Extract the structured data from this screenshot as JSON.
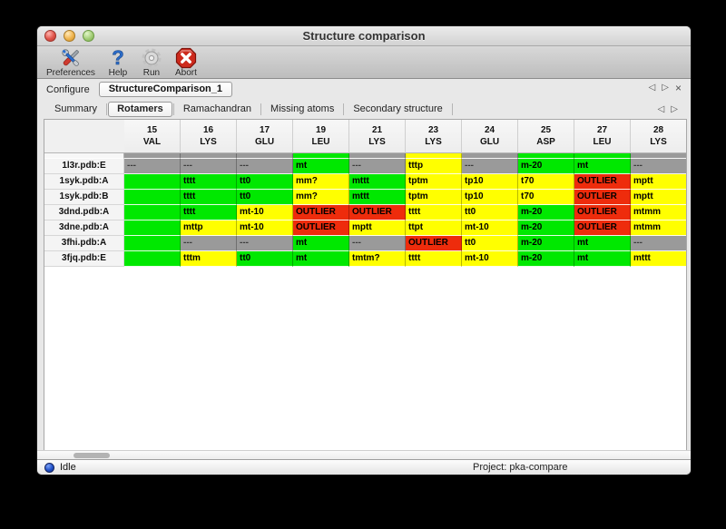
{
  "window": {
    "title": "Structure comparison"
  },
  "toolbar": {
    "items": [
      {
        "label": "Preferences",
        "icon": "preferences-tools-icon"
      },
      {
        "label": "Help",
        "icon": "help-question-icon"
      },
      {
        "label": "Run",
        "icon": "run-gear-icon"
      },
      {
        "label": "Abort",
        "icon": "abort-stop-icon"
      }
    ]
  },
  "configure": {
    "label": "Configure",
    "value": "StructureComparison_1",
    "nav_left": "◁",
    "nav_right": "▷",
    "nav_close": "×"
  },
  "tabs": {
    "items": [
      "Summary",
      "Rotamers",
      "Ramachandran",
      "Missing atoms",
      "Secondary structure"
    ],
    "selected": "Rotamers",
    "nav_left": "◁",
    "nav_right": "▷"
  },
  "colors": {
    "green": "#00e800",
    "yellow": "#ffff00",
    "red": "#ee2c0c",
    "na": "#9a9a9a"
  },
  "table": {
    "columns": [
      {
        "num": "15",
        "res": "VAL"
      },
      {
        "num": "16",
        "res": "LYS"
      },
      {
        "num": "17",
        "res": "GLU"
      },
      {
        "num": "19",
        "res": "LEU"
      },
      {
        "num": "21",
        "res": "LYS"
      },
      {
        "num": "23",
        "res": "LYS"
      },
      {
        "num": "24",
        "res": "GLU"
      },
      {
        "num": "25",
        "res": "ASP"
      },
      {
        "num": "27",
        "res": "LEU"
      },
      {
        "num": "28",
        "res": "LYS"
      }
    ],
    "rows": [
      {
        "label": "1l3r.pdb:E",
        "cells": [
          {
            "text": "---",
            "status": "na"
          },
          {
            "text": "---",
            "status": "na"
          },
          {
            "text": "---",
            "status": "na"
          },
          {
            "text": "mt",
            "status": "green"
          },
          {
            "text": "---",
            "status": "na"
          },
          {
            "text": "tttp",
            "status": "yellow"
          },
          {
            "text": "---",
            "status": "na"
          },
          {
            "text": "m-20",
            "status": "green"
          },
          {
            "text": "mt",
            "status": "green"
          },
          {
            "text": "---",
            "status": "na"
          }
        ]
      },
      {
        "label": "1syk.pdb:A",
        "cells": [
          {
            "text": "",
            "status": "green"
          },
          {
            "text": "tttt",
            "status": "green"
          },
          {
            "text": "tt0",
            "status": "green"
          },
          {
            "text": "mm?",
            "status": "yellow"
          },
          {
            "text": "mttt",
            "status": "green"
          },
          {
            "text": "tptm",
            "status": "yellow"
          },
          {
            "text": "tp10",
            "status": "yellow"
          },
          {
            "text": "t70",
            "status": "yellow"
          },
          {
            "text": "OUTLIER",
            "status": "red"
          },
          {
            "text": "mptt",
            "status": "yellow"
          }
        ]
      },
      {
        "label": "1syk.pdb:B",
        "cells": [
          {
            "text": "",
            "status": "green"
          },
          {
            "text": "tttt",
            "status": "green"
          },
          {
            "text": "tt0",
            "status": "green"
          },
          {
            "text": "mm?",
            "status": "yellow"
          },
          {
            "text": "mttt",
            "status": "green"
          },
          {
            "text": "tptm",
            "status": "yellow"
          },
          {
            "text": "tp10",
            "status": "yellow"
          },
          {
            "text": "t70",
            "status": "yellow"
          },
          {
            "text": "OUTLIER",
            "status": "red"
          },
          {
            "text": "mptt",
            "status": "yellow"
          }
        ]
      },
      {
        "label": "3dnd.pdb:A",
        "cells": [
          {
            "text": "",
            "status": "green"
          },
          {
            "text": "tttt",
            "status": "green"
          },
          {
            "text": "mt-10",
            "status": "yellow"
          },
          {
            "text": "OUTLIER",
            "status": "red"
          },
          {
            "text": "OUTLIER",
            "status": "red"
          },
          {
            "text": "tttt",
            "status": "yellow"
          },
          {
            "text": "tt0",
            "status": "yellow"
          },
          {
            "text": "m-20",
            "status": "green"
          },
          {
            "text": "OUTLIER",
            "status": "red"
          },
          {
            "text": "mtmm",
            "status": "yellow"
          }
        ]
      },
      {
        "label": "3dne.pdb:A",
        "cells": [
          {
            "text": "",
            "status": "green"
          },
          {
            "text": "mttp",
            "status": "yellow"
          },
          {
            "text": "mt-10",
            "status": "yellow"
          },
          {
            "text": "OUTLIER",
            "status": "red"
          },
          {
            "text": "mptt",
            "status": "yellow"
          },
          {
            "text": "ttpt",
            "status": "yellow"
          },
          {
            "text": "mt-10",
            "status": "yellow"
          },
          {
            "text": "m-20",
            "status": "green"
          },
          {
            "text": "OUTLIER",
            "status": "red"
          },
          {
            "text": "mtmm",
            "status": "yellow"
          }
        ]
      },
      {
        "label": "3fhi.pdb:A",
        "cells": [
          {
            "text": "",
            "status": "green"
          },
          {
            "text": "---",
            "status": "na"
          },
          {
            "text": "---",
            "status": "na"
          },
          {
            "text": "mt",
            "status": "green"
          },
          {
            "text": "---",
            "status": "na"
          },
          {
            "text": "OUTLIER",
            "status": "red"
          },
          {
            "text": "tt0",
            "status": "yellow"
          },
          {
            "text": "m-20",
            "status": "green"
          },
          {
            "text": "mt",
            "status": "green"
          },
          {
            "text": "---",
            "status": "na"
          }
        ]
      },
      {
        "label": "3fjq.pdb:E",
        "cells": [
          {
            "text": "",
            "status": "green"
          },
          {
            "text": "tttm",
            "status": "yellow"
          },
          {
            "text": "tt0",
            "status": "green"
          },
          {
            "text": "mt",
            "status": "green"
          },
          {
            "text": "tmtm?",
            "status": "yellow"
          },
          {
            "text": "tttt",
            "status": "yellow"
          },
          {
            "text": "mt-10",
            "status": "yellow"
          },
          {
            "text": "m-20",
            "status": "green"
          },
          {
            "text": "mt",
            "status": "green"
          },
          {
            "text": "mttt",
            "status": "yellow"
          }
        ]
      }
    ]
  },
  "statusbar": {
    "status": "Idle",
    "project": "Project: pka-compare"
  }
}
